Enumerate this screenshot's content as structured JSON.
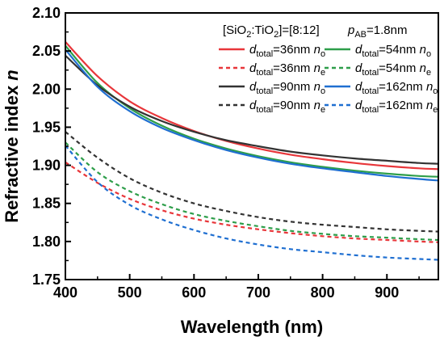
{
  "chart_data": {
    "type": "line",
    "title": "",
    "xlabel": "Wavelength (nm)",
    "ylabel_prefix": "Refractive index ",
    "ylabel_var": "n",
    "xlim": [
      400,
      980
    ],
    "ylim": [
      1.75,
      2.1
    ],
    "x_ticks": [
      "400",
      "500",
      "600",
      "700",
      "800",
      "900"
    ],
    "y_ticks": [
      "1.75",
      "1.80",
      "1.85",
      "1.90",
      "1.95",
      "2.00",
      "2.05",
      "2.10"
    ],
    "grid": false,
    "legend_position": "top-right",
    "header": {
      "composition_prefix": "[SiO",
      "composition_sub1": "2",
      "composition_mid": ":TiO",
      "composition_sub2": "2",
      "composition_suffix": "]=[8:12]",
      "pab_var": "p",
      "pab_sub": "AB",
      "pab_value": "=1.8nm"
    },
    "legend_var": "d",
    "legend_sub": "total",
    "series": [
      {
        "label_value": "=36nm ",
        "label_n": "n",
        "label_sub": "o",
        "color": "#e8363a",
        "dash": "solid",
        "x": [
          400,
          450,
          500,
          550,
          600,
          650,
          700,
          750,
          800,
          850,
          900,
          950,
          980
        ],
        "y": [
          2.062,
          2.017,
          1.984,
          1.962,
          1.945,
          1.932,
          1.922,
          1.914,
          1.908,
          1.903,
          1.899,
          1.896,
          1.895
        ]
      },
      {
        "label_value": "=54nm ",
        "label_n": "n",
        "label_sub": "o",
        "color": "#2e9e4a",
        "dash": "solid",
        "x": [
          400,
          450,
          500,
          550,
          600,
          650,
          700,
          750,
          800,
          850,
          900,
          950,
          980
        ],
        "y": [
          2.057,
          2.008,
          1.975,
          1.952,
          1.935,
          1.922,
          1.912,
          1.904,
          1.898,
          1.893,
          1.889,
          1.886,
          1.885
        ]
      },
      {
        "label_value": "=36nm ",
        "label_n": "n",
        "label_sub": "e",
        "color": "#e8363a",
        "dash": "dashed",
        "x": [
          400,
          450,
          500,
          550,
          600,
          650,
          700,
          750,
          800,
          850,
          900,
          950,
          980
        ],
        "y": [
          1.904,
          1.877,
          1.856,
          1.841,
          1.83,
          1.822,
          1.816,
          1.811,
          1.807,
          1.804,
          1.802,
          1.8,
          1.799
        ]
      },
      {
        "label_value": "=54nm ",
        "label_n": "n",
        "label_sub": "e",
        "color": "#2e9e4a",
        "dash": "dashed",
        "x": [
          400,
          450,
          500,
          550,
          600,
          650,
          700,
          750,
          800,
          850,
          900,
          950,
          980
        ],
        "y": [
          1.93,
          1.891,
          1.866,
          1.849,
          1.836,
          1.827,
          1.82,
          1.814,
          1.81,
          1.807,
          1.805,
          1.803,
          1.802
        ]
      },
      {
        "label_value": "=90nm ",
        "label_n": "n",
        "label_sub": "o",
        "color": "#333333",
        "dash": "solid",
        "x": [
          400,
          450,
          500,
          550,
          600,
          650,
          700,
          750,
          800,
          850,
          900,
          950,
          980
        ],
        "y": [
          2.044,
          2.005,
          1.977,
          1.958,
          1.944,
          1.933,
          1.925,
          1.918,
          1.913,
          1.909,
          1.906,
          1.903,
          1.902
        ]
      },
      {
        "label_value": "=162nm ",
        "label_n": "n",
        "label_sub": "o",
        "color": "#1f6fd1",
        "dash": "solid",
        "x": [
          400,
          450,
          500,
          550,
          600,
          650,
          700,
          750,
          800,
          850,
          900,
          950,
          980
        ],
        "y": [
          2.052,
          2.003,
          1.971,
          1.949,
          1.933,
          1.92,
          1.91,
          1.902,
          1.896,
          1.891,
          1.886,
          1.882,
          1.88
        ]
      },
      {
        "label_value": "=90nm ",
        "label_n": "n",
        "label_sub": "e",
        "color": "#333333",
        "dash": "dashed",
        "x": [
          400,
          450,
          500,
          550,
          600,
          650,
          700,
          750,
          800,
          850,
          900,
          950,
          980
        ],
        "y": [
          1.944,
          1.91,
          1.883,
          1.864,
          1.85,
          1.84,
          1.832,
          1.826,
          1.822,
          1.819,
          1.816,
          1.814,
          1.813
        ]
      },
      {
        "label_value": "=162nm ",
        "label_n": "n",
        "label_sub": "e",
        "color": "#1f6fd1",
        "dash": "dashed",
        "x": [
          400,
          450,
          500,
          550,
          600,
          650,
          700,
          750,
          800,
          850,
          900,
          950,
          980
        ],
        "y": [
          1.926,
          1.878,
          1.848,
          1.829,
          1.815,
          1.804,
          1.796,
          1.79,
          1.786,
          1.782,
          1.779,
          1.777,
          1.776
        ]
      }
    ]
  }
}
